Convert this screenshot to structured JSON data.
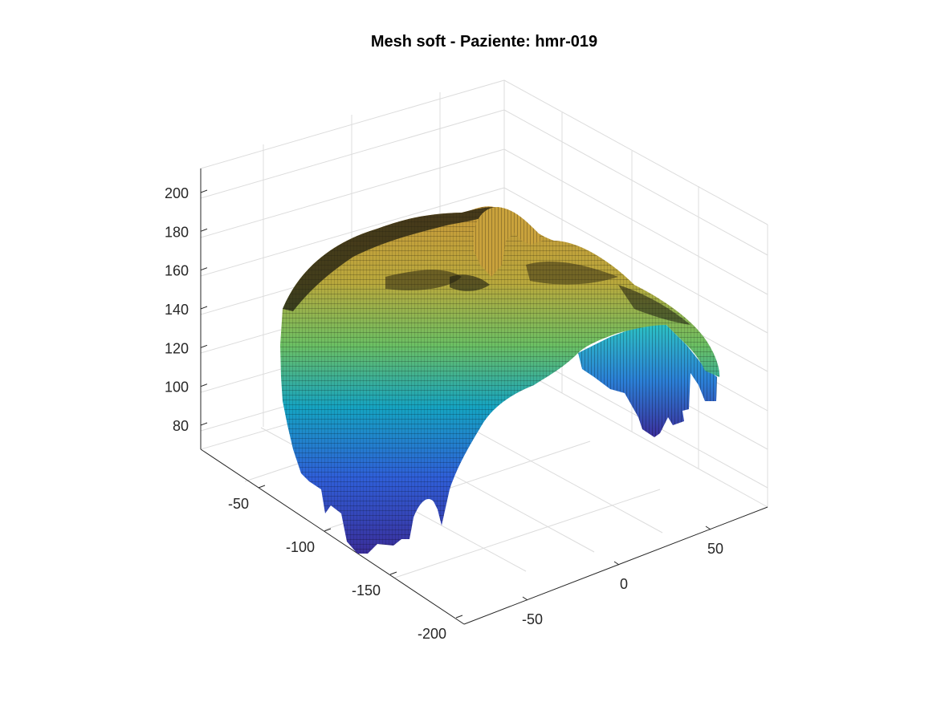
{
  "window": {
    "title": "Mesh soft - Paziente: hmr-019"
  },
  "chart_data": {
    "type": "surface",
    "title": "Mesh soft - Paziente: hmr-019",
    "xlabel": "",
    "ylabel": "",
    "zlabel": "",
    "colormap": "parula",
    "colormap_stops": [
      "#352a87",
      "#2c58d6",
      "#1f8fd4",
      "#12b2b5",
      "#56c374",
      "#b0bd37",
      "#e8b52a",
      "#f9e01b"
    ],
    "edge_color": "#000000",
    "grid": true,
    "view": "3d-oblique",
    "x_axis": {
      "ticks": [
        -200,
        -150,
        -100,
        -50
      ],
      "tick_labels": [
        "-200",
        "-150",
        "-100",
        "-50"
      ],
      "range": [
        -210,
        -20
      ]
    },
    "y_axis": {
      "ticks": [
        -50,
        0,
        50
      ],
      "tick_labels": [
        "-50",
        "0",
        "50"
      ],
      "range": [
        -90,
        90
      ]
    },
    "z_axis": {
      "ticks": [
        80,
        100,
        120,
        140,
        160,
        180,
        200
      ],
      "tick_labels": [
        "80",
        "100",
        "120",
        "140",
        "160",
        "180",
        "200"
      ],
      "range": [
        70,
        210
      ]
    },
    "surface_summary": {
      "z_min_approx": 72,
      "z_max_approx": 190,
      "description": "Soft-tissue facial mesh surface, nose peak near top"
    }
  }
}
